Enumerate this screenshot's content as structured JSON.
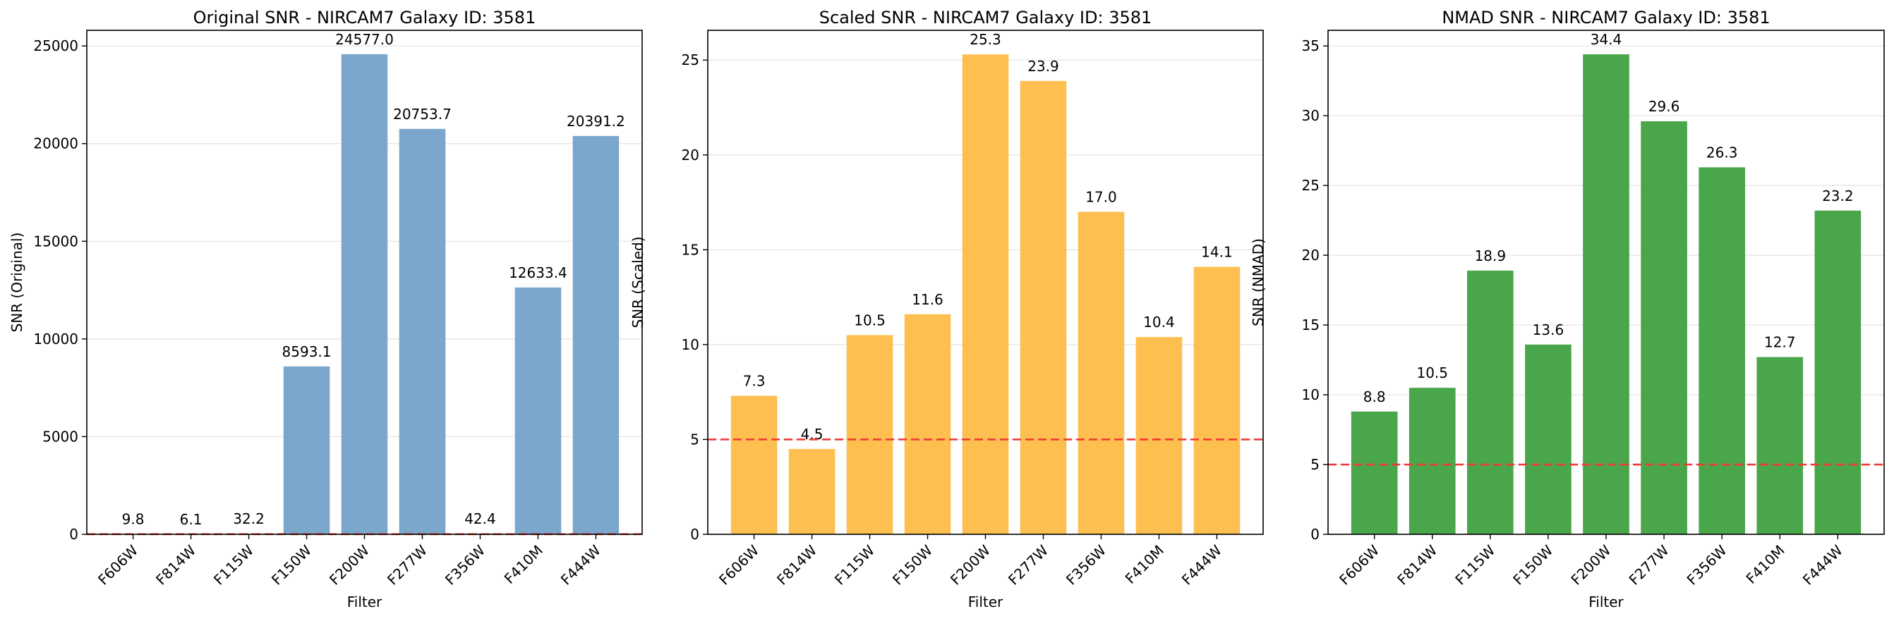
{
  "chart_data": [
    {
      "type": "bar",
      "title": "Original SNR - NIRCAM7 Galaxy ID: 3581",
      "xlabel": "Filter",
      "ylabel": "SNR (Original)",
      "categories": [
        "F606W",
        "F814W",
        "F115W",
        "F150W",
        "F200W",
        "F277W",
        "F356W",
        "F410M",
        "F444W"
      ],
      "values": [
        9.8,
        6.1,
        32.2,
        8593.1,
        24577.0,
        20753.7,
        42.4,
        12633.4,
        20391.2
      ],
      "value_labels": [
        "9.8",
        "6.1",
        "32.2",
        "8593.1",
        "24577.0",
        "20753.7",
        "42.4",
        "12633.4",
        "20391.2"
      ],
      "ylim": [
        0,
        25800
      ],
      "yticks": [
        0,
        5000,
        10000,
        15000,
        20000,
        25000
      ],
      "ytick_labels": [
        "0",
        "5000",
        "10000",
        "15000",
        "20000",
        "25000"
      ],
      "threshold": 5,
      "bar_color": "#7ba7cc",
      "grid": true
    },
    {
      "type": "bar",
      "title": "Scaled SNR - NIRCAM7 Galaxy ID: 3581",
      "xlabel": "Filter",
      "ylabel": "SNR (Scaled)",
      "categories": [
        "F606W",
        "F814W",
        "F115W",
        "F150W",
        "F200W",
        "F277W",
        "F356W",
        "F410M",
        "F444W"
      ],
      "values": [
        7.3,
        4.5,
        10.5,
        11.6,
        25.3,
        23.9,
        17.0,
        10.4,
        14.1
      ],
      "value_labels": [
        "7.3",
        "4.5",
        "10.5",
        "11.6",
        "25.3",
        "23.9",
        "17.0",
        "10.4",
        "14.1"
      ],
      "ylim": [
        0,
        26.57
      ],
      "yticks": [
        0,
        5,
        10,
        15,
        20,
        25
      ],
      "ytick_labels": [
        "0",
        "5",
        "10",
        "15",
        "20",
        "25"
      ],
      "threshold": 5,
      "bar_color": "#fdbf4f",
      "grid": true
    },
    {
      "type": "bar",
      "title": "NMAD SNR - NIRCAM7 Galaxy ID: 3581",
      "xlabel": "Filter",
      "ylabel": "SNR (NMAD)",
      "categories": [
        "F606W",
        "F814W",
        "F115W",
        "F150W",
        "F200W",
        "F277W",
        "F356W",
        "F410M",
        "F444W"
      ],
      "values": [
        8.8,
        10.5,
        18.9,
        13.6,
        34.4,
        29.6,
        26.3,
        12.7,
        23.2
      ],
      "value_labels": [
        "8.8",
        "10.5",
        "18.9",
        "13.6",
        "34.4",
        "29.6",
        "26.3",
        "12.7",
        "23.2"
      ],
      "ylim": [
        0,
        36.12
      ],
      "yticks": [
        0,
        5,
        10,
        15,
        20,
        25,
        30,
        35
      ],
      "ytick_labels": [
        "0",
        "5",
        "10",
        "15",
        "20",
        "25",
        "30",
        "35"
      ],
      "threshold": 5,
      "bar_color": "#4aa64a",
      "grid": true
    }
  ]
}
